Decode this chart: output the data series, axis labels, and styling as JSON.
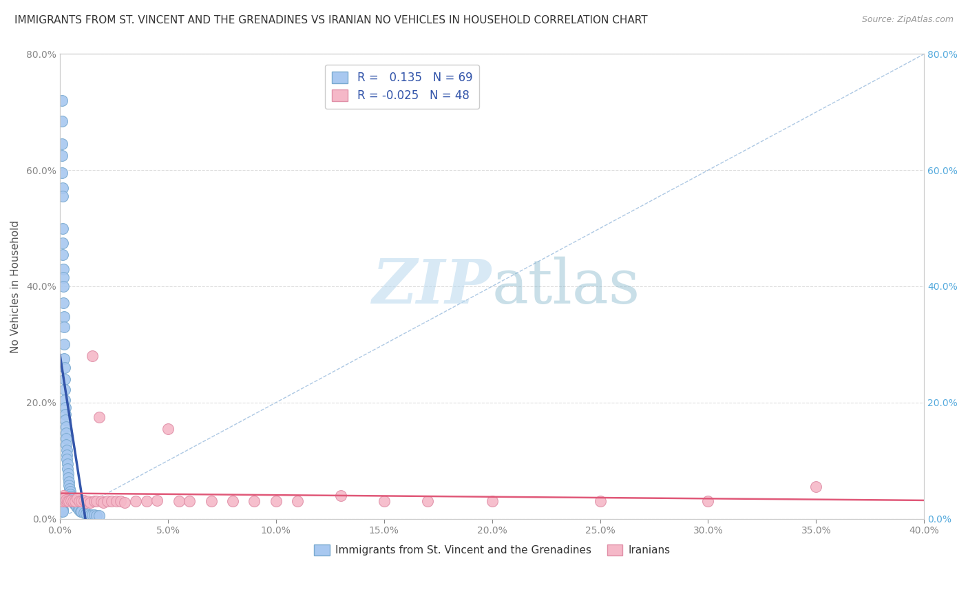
{
  "title": "IMMIGRANTS FROM ST. VINCENT AND THE GRENADINES VS IRANIAN NO VEHICLES IN HOUSEHOLD CORRELATION CHART",
  "source": "Source: ZipAtlas.com",
  "ylabel": "No Vehicles in Household",
  "xlim": [
    0,
    0.4
  ],
  "ylim": [
    0,
    0.8
  ],
  "xticks": [
    0.0,
    0.05,
    0.1,
    0.15,
    0.2,
    0.25,
    0.3,
    0.35,
    0.4
  ],
  "yticks": [
    0.0,
    0.2,
    0.4,
    0.6,
    0.8
  ],
  "blue_R": 0.135,
  "blue_N": 69,
  "pink_R": -0.025,
  "pink_N": 48,
  "blue_color": "#a8c8f0",
  "blue_edge": "#7aaad0",
  "pink_color": "#f5b8c8",
  "pink_edge": "#e090a8",
  "blue_line_color": "#3355aa",
  "pink_line_color": "#e05878",
  "diag_line_color": "#99bbdd",
  "legend_label_blue": "Immigrants from St. Vincent and the Grenadines",
  "legend_label_pink": "Iranians",
  "blue_scatter_x": [
    0.0008,
    0.0009,
    0.001,
    0.001,
    0.001,
    0.0011,
    0.0012,
    0.0012,
    0.0013,
    0.0014,
    0.0015,
    0.0015,
    0.0016,
    0.0017,
    0.0018,
    0.0019,
    0.002,
    0.002,
    0.0021,
    0.0022,
    0.0022,
    0.0023,
    0.0024,
    0.0025,
    0.0026,
    0.0027,
    0.0028,
    0.0029,
    0.003,
    0.0031,
    0.0032,
    0.0033,
    0.0034,
    0.0035,
    0.0037,
    0.0038,
    0.004,
    0.0042,
    0.0044,
    0.0046,
    0.0048,
    0.005,
    0.0055,
    0.006,
    0.0065,
    0.007,
    0.0075,
    0.008,
    0.0085,
    0.009,
    0.0095,
    0.01,
    0.011,
    0.012,
    0.013,
    0.014,
    0.015,
    0.016,
    0.017,
    0.018,
    0.0005,
    0.0006,
    0.0007,
    0.0008,
    0.0009,
    0.001,
    0.0011,
    0.0012,
    0.0013
  ],
  "blue_scatter_y": [
    0.72,
    0.685,
    0.645,
    0.625,
    0.595,
    0.57,
    0.555,
    0.5,
    0.475,
    0.455,
    0.43,
    0.415,
    0.4,
    0.372,
    0.348,
    0.33,
    0.3,
    0.275,
    0.26,
    0.24,
    0.222,
    0.205,
    0.192,
    0.18,
    0.17,
    0.158,
    0.148,
    0.138,
    0.128,
    0.118,
    0.11,
    0.102,
    0.094,
    0.086,
    0.078,
    0.07,
    0.063,
    0.057,
    0.052,
    0.047,
    0.042,
    0.038,
    0.034,
    0.03,
    0.027,
    0.024,
    0.021,
    0.019,
    0.017,
    0.015,
    0.013,
    0.012,
    0.01,
    0.009,
    0.008,
    0.007,
    0.006,
    0.006,
    0.005,
    0.005,
    0.03,
    0.028,
    0.025,
    0.022,
    0.02,
    0.018,
    0.016,
    0.014,
    0.012
  ],
  "pink_scatter_x": [
    0.0008,
    0.001,
    0.0012,
    0.0015,
    0.002,
    0.0025,
    0.003,
    0.0035,
    0.004,
    0.005,
    0.006,
    0.007,
    0.008,
    0.009,
    0.01,
    0.011,
    0.012,
    0.013,
    0.014,
    0.015,
    0.016,
    0.017,
    0.018,
    0.019,
    0.02,
    0.022,
    0.024,
    0.026,
    0.028,
    0.03,
    0.035,
    0.04,
    0.045,
    0.05,
    0.055,
    0.06,
    0.07,
    0.08,
    0.09,
    0.1,
    0.11,
    0.13,
    0.15,
    0.17,
    0.2,
    0.25,
    0.3,
    0.35
  ],
  "pink_scatter_y": [
    0.03,
    0.035,
    0.03,
    0.04,
    0.035,
    0.03,
    0.033,
    0.03,
    0.03,
    0.032,
    0.03,
    0.03,
    0.035,
    0.03,
    0.03,
    0.032,
    0.028,
    0.03,
    0.028,
    0.28,
    0.03,
    0.03,
    0.175,
    0.03,
    0.028,
    0.03,
    0.03,
    0.03,
    0.03,
    0.028,
    0.03,
    0.03,
    0.032,
    0.155,
    0.03,
    0.03,
    0.03,
    0.03,
    0.03,
    0.03,
    0.03,
    0.04,
    0.03,
    0.03,
    0.03,
    0.03,
    0.03,
    0.055
  ],
  "watermark_zip": "ZIP",
  "watermark_atlas": "atlas",
  "background_color": "#ffffff",
  "grid_color": "#dddddd",
  "tick_label_color": "#888888",
  "right_tick_color": "#55aadd"
}
